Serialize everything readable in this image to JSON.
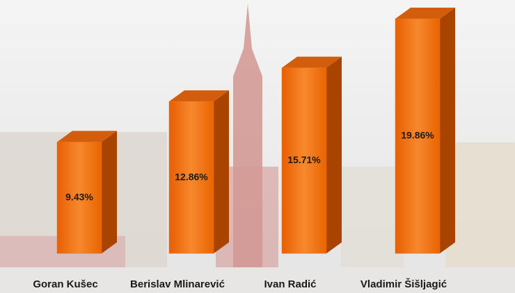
{
  "chart_data": {
    "type": "bar3d",
    "categories": [
      "Goran Kušec",
      "Berislav Mlinarević",
      "Ivan Radić",
      "Vladimir Šišljagić"
    ],
    "values": [
      9.43,
      12.86,
      15.71,
      19.86
    ],
    "value_labels": [
      "9.43%",
      "12.86%",
      "15.71%",
      "19.86%"
    ],
    "color": "#f07318"
  }
}
